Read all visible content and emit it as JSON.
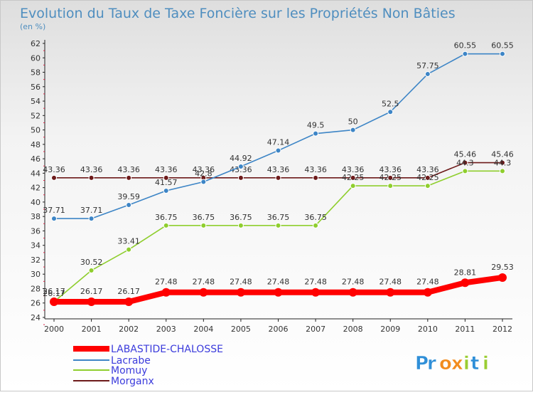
{
  "chart_data": {
    "type": "line",
    "title": "Evolution du Taux de Taxe Foncière sur les Propriétés Non Bâties",
    "subtitle": "(en %)",
    "x": [
      "2000",
      "2001",
      "2002",
      "2003",
      "2004",
      "2005",
      "2006",
      "2007",
      "2008",
      "2009",
      "2010",
      "2011",
      "2012"
    ],
    "ylim": [
      24,
      62
    ],
    "yticks": [
      24,
      26,
      28,
      30,
      32,
      34,
      36,
      38,
      40,
      42,
      44,
      46,
      48,
      50,
      52,
      54,
      56,
      58,
      60,
      62
    ],
    "grid": false,
    "legend_position": "bottom-left",
    "series": [
      {
        "name": "LABASTIDE-CHALOSSE",
        "color": "#ff0000",
        "values": [
          26.17,
          26.17,
          26.17,
          27.48,
          27.48,
          27.48,
          27.48,
          27.48,
          27.48,
          27.48,
          27.48,
          28.81,
          29.53
        ],
        "labels": [
          "26.17",
          "26.17",
          "26.17",
          "27.48",
          "27.48",
          "27.48",
          "27.48",
          "27.48",
          "27.48",
          "27.48",
          "27.48",
          "28.81",
          "29.53"
        ]
      },
      {
        "name": "Lacrabe",
        "color": "#3d85c6",
        "values": [
          37.71,
          37.71,
          39.59,
          41.57,
          42.8,
          44.92,
          47.14,
          49.5,
          50,
          52.5,
          57.75,
          60.55,
          60.55
        ],
        "labels": [
          "37.71",
          "37.71",
          "39.59",
          "41.57",
          "42.8",
          "44.92",
          "47.14",
          "49.5",
          "50",
          "52.5",
          "57.75",
          "60.55",
          "60.55"
        ]
      },
      {
        "name": "Momuy",
        "color": "#8fce2e",
        "values": [
          26.17,
          30.52,
          33.41,
          36.75,
          36.75,
          36.75,
          36.75,
          36.75,
          42.25,
          42.25,
          42.25,
          44.3,
          44.3
        ],
        "labels": [
          "26.17",
          "30.52",
          "33.41",
          "36.75",
          "36.75",
          "36.75",
          "36.75",
          "36.75",
          "42.25",
          "42.25",
          "42.25",
          "44.3",
          "44.3"
        ]
      },
      {
        "name": "Morganx",
        "color": "#6d1a1a",
        "values": [
          43.36,
          43.36,
          43.36,
          43.36,
          43.36,
          43.36,
          43.36,
          43.36,
          43.36,
          43.36,
          43.36,
          45.46,
          45.46
        ],
        "labels": [
          "43.36",
          "43.36",
          "43.36",
          "43.36",
          "43.36",
          "43.36",
          "43.36",
          "43.36",
          "43.36",
          "43.36",
          "43.36",
          "45.46",
          "45.46"
        ]
      }
    ]
  },
  "brand": {
    "text": "Proxiti",
    "letters": [
      "P",
      "r",
      "o",
      "x",
      "i",
      "t",
      "i"
    ],
    "letter_colors": [
      "#2f8fd8",
      "#2f8fd8",
      "#f28c1e",
      "#f28c1e",
      "#9acd32",
      "#2f8fd8",
      "#9acd32"
    ]
  }
}
